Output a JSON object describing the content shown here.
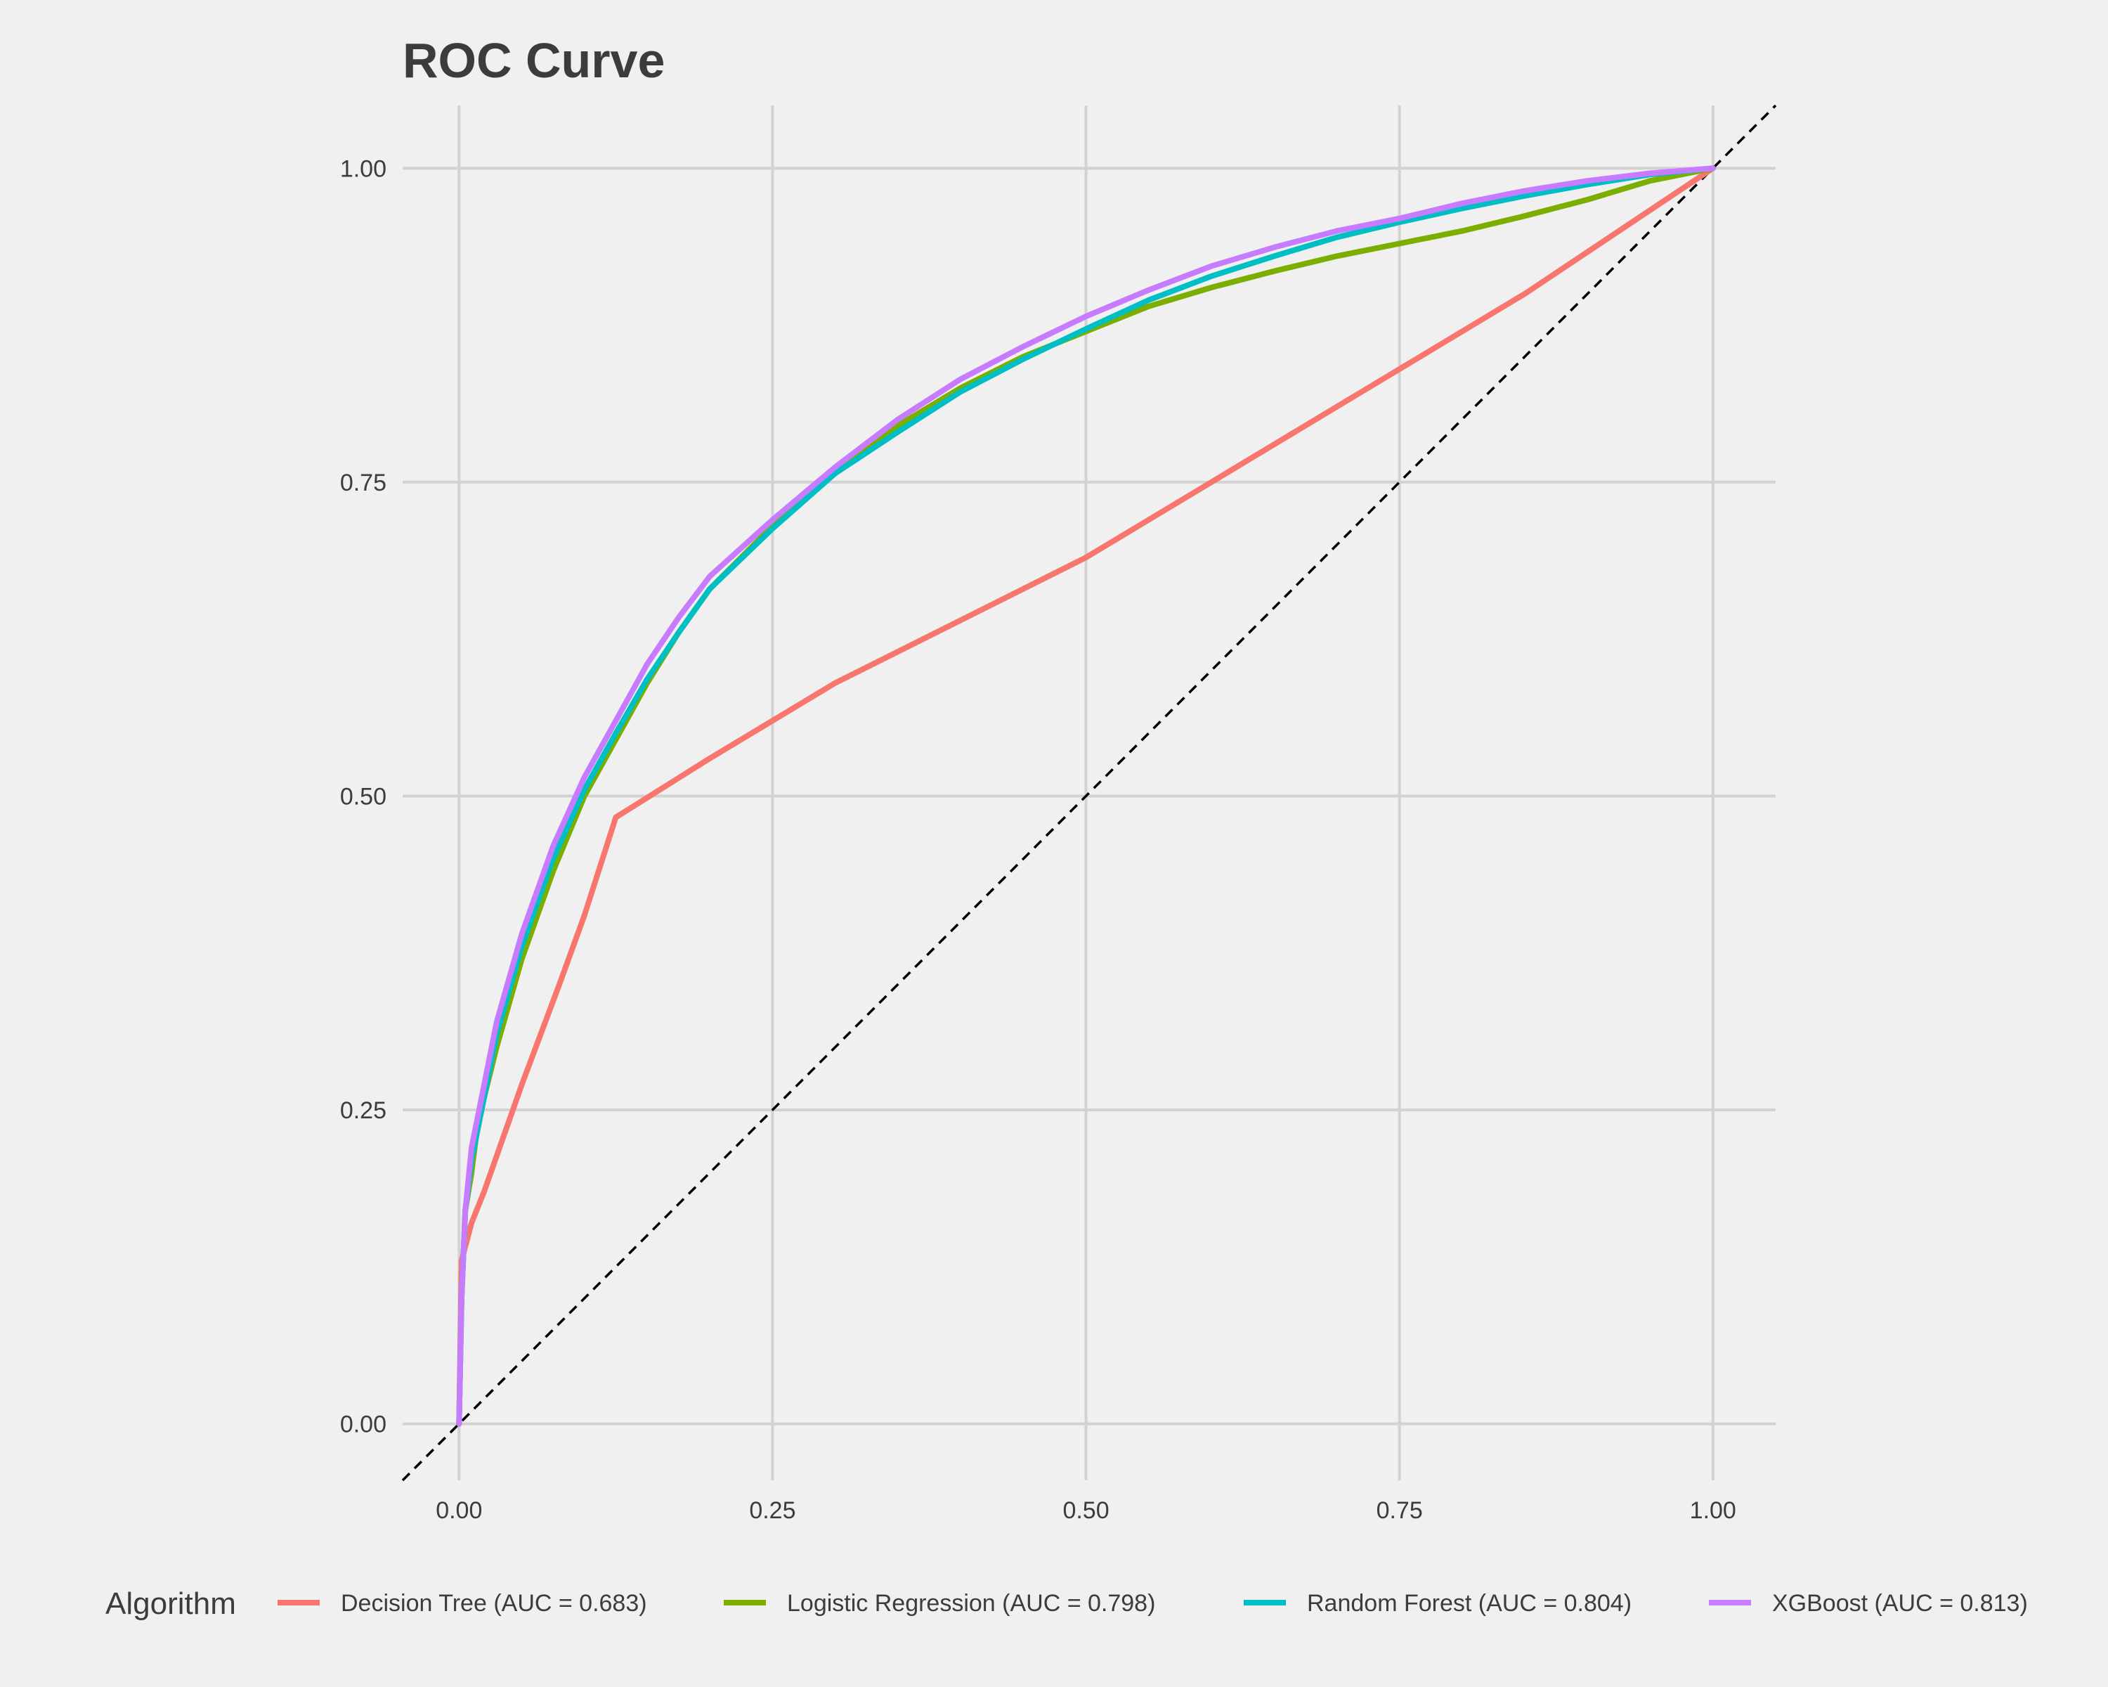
{
  "colors": {
    "background": "#f0f0f0",
    "grid": "#d2d2d2",
    "text": "#3c3c3c",
    "reference": "#000000"
  },
  "chart_data": {
    "type": "line",
    "title": "ROC Curve",
    "xlabel": "",
    "ylabel": "",
    "xlim": [
      -0.045,
      1.05
    ],
    "ylim": [
      -0.045,
      1.05
    ],
    "x_ticks": [
      0,
      0.25,
      0.5,
      0.75,
      1
    ],
    "y_ticks": [
      0,
      0.25,
      0.5,
      0.75,
      1
    ],
    "x_tick_labels": [
      "0.00",
      "0.25",
      "0.50",
      "0.75",
      "1.00"
    ],
    "y_tick_labels": [
      "0.00",
      "0.25",
      "0.50",
      "0.75",
      "1.00"
    ],
    "grid": true,
    "legend": {
      "title": "Algorithm",
      "position": "bottom"
    },
    "reference_line": {
      "style": "dashed",
      "color": "#000000",
      "slope": 1,
      "intercept": 0
    },
    "series": [
      {
        "name": "Decision Tree (AUC = 0.683)",
        "color": "#f8766d",
        "points": [
          [
            0,
            0
          ],
          [
            0.002,
            0.13
          ],
          [
            0.01,
            0.16
          ],
          [
            0.02,
            0.185
          ],
          [
            0.05,
            0.27
          ],
          [
            0.08,
            0.35
          ],
          [
            0.1,
            0.405
          ],
          [
            0.125,
            0.483
          ],
          [
            0.2,
            0.53
          ],
          [
            0.3,
            0.59
          ],
          [
            0.4,
            0.64
          ],
          [
            0.5,
            0.69
          ],
          [
            0.6,
            0.75
          ],
          [
            0.7,
            0.81
          ],
          [
            0.75,
            0.84
          ],
          [
            0.85,
            0.9
          ],
          [
            1,
            1
          ]
        ]
      },
      {
        "name": "Logistic Regression (AUC = 0.798)",
        "color": "#7cae00",
        "points": [
          [
            0,
            0
          ],
          [
            0.002,
            0.1
          ],
          [
            0.005,
            0.17
          ],
          [
            0.01,
            0.2
          ],
          [
            0.015,
            0.24
          ],
          [
            0.03,
            0.3
          ],
          [
            0.05,
            0.37
          ],
          [
            0.075,
            0.44
          ],
          [
            0.1,
            0.5
          ],
          [
            0.125,
            0.545
          ],
          [
            0.15,
            0.59
          ],
          [
            0.175,
            0.63
          ],
          [
            0.2,
            0.665
          ],
          [
            0.25,
            0.715
          ],
          [
            0.3,
            0.76
          ],
          [
            0.35,
            0.795
          ],
          [
            0.4,
            0.825
          ],
          [
            0.45,
            0.85
          ],
          [
            0.5,
            0.87
          ],
          [
            0.55,
            0.89
          ],
          [
            0.6,
            0.905
          ],
          [
            0.65,
            0.918
          ],
          [
            0.7,
            0.93
          ],
          [
            0.75,
            0.94
          ],
          [
            0.8,
            0.95
          ],
          [
            0.85,
            0.962
          ],
          [
            0.9,
            0.975
          ],
          [
            0.95,
            0.99
          ],
          [
            1,
            1
          ]
        ]
      },
      {
        "name": "Random Forest (AUC = 0.804)",
        "color": "#00bfc4",
        "points": [
          [
            0,
            0
          ],
          [
            0.002,
            0.1
          ],
          [
            0.005,
            0.17
          ],
          [
            0.01,
            0.21
          ],
          [
            0.02,
            0.26
          ],
          [
            0.03,
            0.31
          ],
          [
            0.05,
            0.38
          ],
          [
            0.075,
            0.45
          ],
          [
            0.1,
            0.505
          ],
          [
            0.125,
            0.55
          ],
          [
            0.15,
            0.593
          ],
          [
            0.175,
            0.63
          ],
          [
            0.2,
            0.665
          ],
          [
            0.25,
            0.713
          ],
          [
            0.3,
            0.757
          ],
          [
            0.35,
            0.79
          ],
          [
            0.4,
            0.822
          ],
          [
            0.45,
            0.848
          ],
          [
            0.5,
            0.872
          ],
          [
            0.55,
            0.895
          ],
          [
            0.6,
            0.914
          ],
          [
            0.65,
            0.93
          ],
          [
            0.7,
            0.945
          ],
          [
            0.75,
            0.957
          ],
          [
            0.8,
            0.968
          ],
          [
            0.85,
            0.978
          ],
          [
            0.9,
            0.987
          ],
          [
            0.95,
            0.995
          ],
          [
            1,
            1
          ]
        ]
      },
      {
        "name": "XGBoost (AUC = 0.813)",
        "color": "#c77cff",
        "points": [
          [
            0,
            0
          ],
          [
            0.002,
            0.1
          ],
          [
            0.005,
            0.17
          ],
          [
            0.01,
            0.22
          ],
          [
            0.02,
            0.27
          ],
          [
            0.03,
            0.32
          ],
          [
            0.05,
            0.39
          ],
          [
            0.075,
            0.46
          ],
          [
            0.1,
            0.515
          ],
          [
            0.125,
            0.56
          ],
          [
            0.15,
            0.605
          ],
          [
            0.175,
            0.642
          ],
          [
            0.2,
            0.675
          ],
          [
            0.25,
            0.72
          ],
          [
            0.3,
            0.762
          ],
          [
            0.35,
            0.8
          ],
          [
            0.4,
            0.832
          ],
          [
            0.45,
            0.858
          ],
          [
            0.5,
            0.882
          ],
          [
            0.55,
            0.903
          ],
          [
            0.6,
            0.922
          ],
          [
            0.65,
            0.937
          ],
          [
            0.7,
            0.95
          ],
          [
            0.75,
            0.96
          ],
          [
            0.8,
            0.972
          ],
          [
            0.85,
            0.982
          ],
          [
            0.9,
            0.99
          ],
          [
            0.95,
            0.996
          ],
          [
            1,
            1
          ]
        ]
      }
    ]
  }
}
